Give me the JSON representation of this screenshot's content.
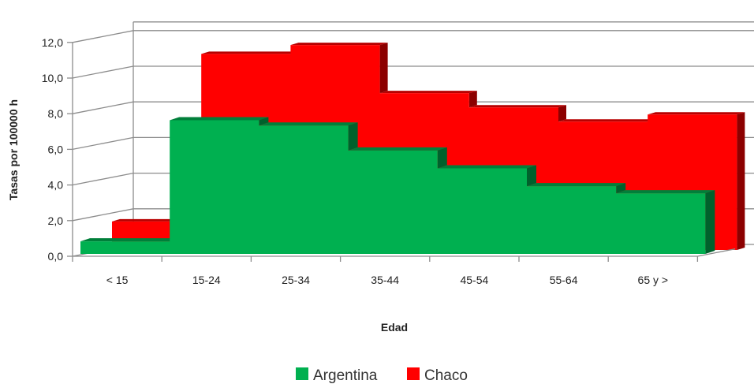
{
  "chart_data": {
    "type": "area",
    "categories": [
      "< 15",
      "15-24",
      "25-34",
      "35-44",
      "45-54",
      "55-64",
      "65 y >"
    ],
    "xlabel": "Edad",
    "ylabel": "Tasas por 100000 h",
    "ylim": [
      0,
      12
    ],
    "yticks": [
      "0,0",
      "2,0",
      "4,0",
      "6,0",
      "8,0",
      "10,0",
      "12,0"
    ],
    "series": [
      {
        "name": "Chaco",
        "color": "#ff0000",
        "values": [
          1.6,
          11.0,
          11.5,
          8.8,
          8.0,
          7.2,
          7.6
        ]
      },
      {
        "name": "Argentina",
        "color": "#00b050",
        "values": [
          0.7,
          7.5,
          7.2,
          5.8,
          4.8,
          3.8,
          3.4
        ]
      }
    ],
    "grid": true,
    "legend": "bottom"
  }
}
